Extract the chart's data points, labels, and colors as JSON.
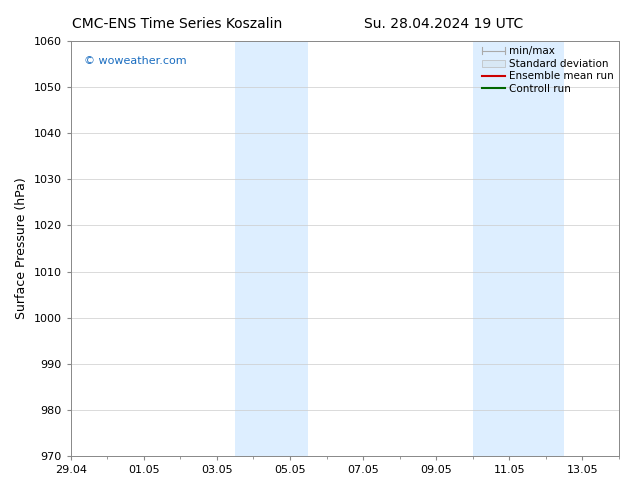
{
  "title_left": "CMC-ENS Time Series Koszalin",
  "title_right": "Su. 28.04.2024 19 UTC",
  "ylabel": "Surface Pressure (hPa)",
  "ylim": [
    970,
    1060
  ],
  "yticks": [
    970,
    980,
    990,
    1000,
    1010,
    1020,
    1030,
    1040,
    1050,
    1060
  ],
  "xtick_labels": [
    "29.04",
    "01.05",
    "03.05",
    "05.05",
    "07.05",
    "09.05",
    "11.05",
    "13.05"
  ],
  "xtick_positions": [
    0,
    2,
    4,
    6,
    8,
    10,
    12,
    14
  ],
  "xlim": [
    0,
    15
  ],
  "shaded_bands": [
    {
      "x_start": 4.5,
      "x_end": 6.5
    },
    {
      "x_start": 11.0,
      "x_end": 13.5
    }
  ],
  "shade_color": "#ddeeff",
  "watermark_text": "© woweather.com",
  "watermark_color": "#1a6dc0",
  "legend_entries": [
    {
      "label": "min/max",
      "color": "#aaaaaa",
      "lw": 1.0
    },
    {
      "label": "Standard deviation",
      "color": "#cccccc",
      "lw": 4.0
    },
    {
      "label": "Ensemble mean run",
      "color": "#cc0000",
      "lw": 1.5
    },
    {
      "label": "Controll run",
      "color": "#006600",
      "lw": 1.5
    }
  ],
  "bg_color": "#ffffff",
  "grid_color": "#cccccc",
  "title_fontsize": 10,
  "tick_fontsize": 8,
  "ylabel_fontsize": 9,
  "legend_fontsize": 7.5,
  "watermark_fontsize": 8
}
